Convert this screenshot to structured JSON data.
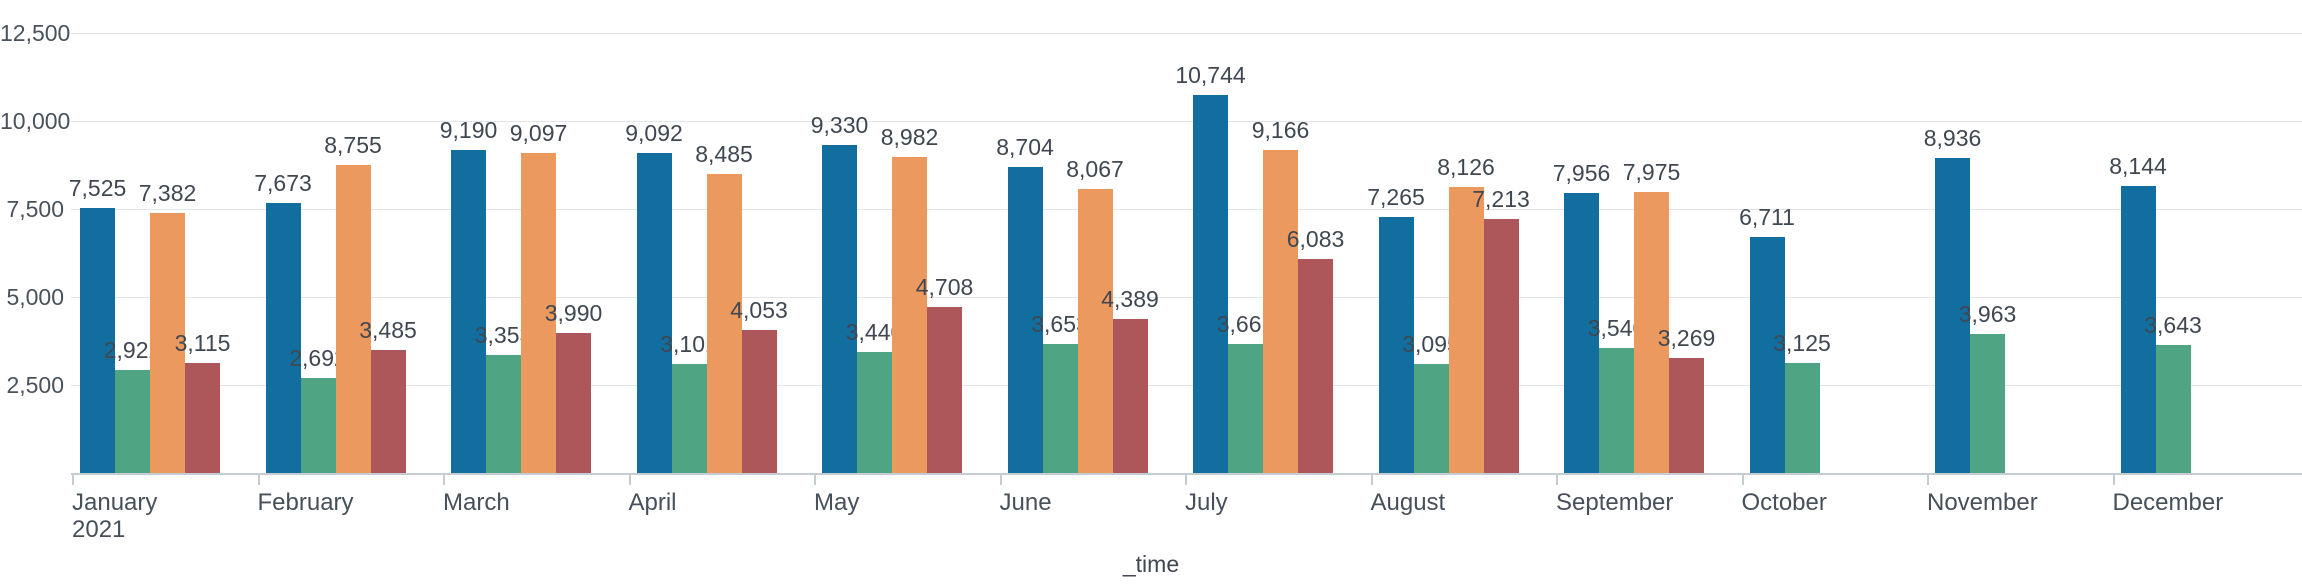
{
  "chart_data": {
    "type": "bar",
    "title": "",
    "xlabel": "_time",
    "ylabel": "",
    "ylim": [
      0,
      12500
    ],
    "grid": true,
    "legend": "none",
    "y_ticks": [
      2500,
      5000,
      7500,
      10000,
      12500
    ],
    "categories": [
      "January",
      "February",
      "March",
      "April",
      "May",
      "June",
      "July",
      "August",
      "September",
      "October",
      "November",
      "December"
    ],
    "first_category_year_label": "2021",
    "series": [
      {
        "name": "series_blue",
        "color": "#116e9e",
        "values": [
          7525,
          7673,
          9190,
          9092,
          9330,
          8704,
          10744,
          7265,
          7956,
          6711,
          8936,
          8144
        ]
      },
      {
        "name": "series_green",
        "color": "#4fa484",
        "values": [
          2922,
          2692,
          3353,
          3101,
          3440,
          3653,
          3661,
          3095,
          3540,
          3125,
          3963,
          3643
        ]
      },
      {
        "name": "series_orange",
        "color": "#ec9960",
        "values": [
          7382,
          8755,
          9097,
          8485,
          8982,
          8067,
          9166,
          8126,
          7975,
          null,
          null,
          null
        ]
      },
      {
        "name": "series_red",
        "color": "#ae575b",
        "values": [
          3115,
          3485,
          3990,
          4053,
          4708,
          4389,
          6083,
          7213,
          3269,
          null,
          null,
          null
        ]
      }
    ]
  },
  "colors": {
    "background": "#ffffff",
    "gridline": "#e2e6ea",
    "axis_line": "#c6ccd3",
    "value_label_text": "#3f4751",
    "axis_label_text": "#4a525c"
  }
}
